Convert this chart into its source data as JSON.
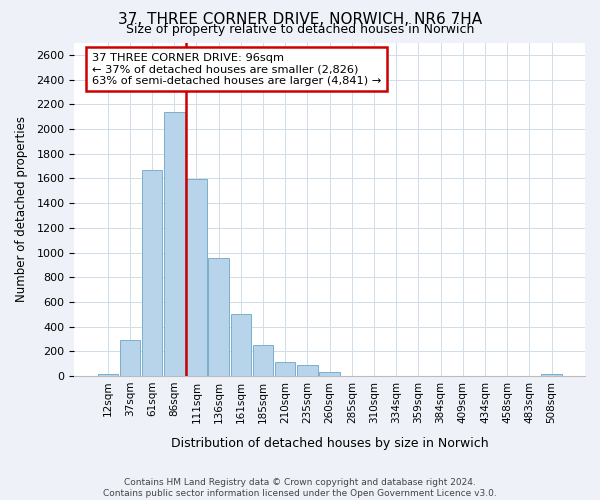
{
  "title": "37, THREE CORNER DRIVE, NORWICH, NR6 7HA",
  "subtitle": "Size of property relative to detached houses in Norwich",
  "xlabel": "Distribution of detached houses by size in Norwich",
  "ylabel": "Number of detached properties",
  "bin_labels": [
    "12sqm",
    "37sqm",
    "61sqm",
    "86sqm",
    "111sqm",
    "136sqm",
    "161sqm",
    "185sqm",
    "210sqm",
    "235sqm",
    "260sqm",
    "285sqm",
    "310sqm",
    "334sqm",
    "359sqm",
    "384sqm",
    "409sqm",
    "434sqm",
    "458sqm",
    "483sqm",
    "508sqm"
  ],
  "bar_heights": [
    20,
    290,
    1665,
    2140,
    1595,
    960,
    500,
    250,
    115,
    90,
    30,
    5,
    5,
    3,
    3,
    3,
    3,
    3,
    3,
    3,
    15
  ],
  "bar_color": "#b8d4ea",
  "bar_edge_color": "#7aaece",
  "vline_color": "#cc0000",
  "vline_xindex": 4,
  "annotation_text": "37 THREE CORNER DRIVE: 96sqm\n← 37% of detached houses are smaller (2,826)\n63% of semi-detached houses are larger (4,841) →",
  "annotation_box_color": "#ffffff",
  "annotation_box_edge": "#cc0000",
  "ylim": [
    0,
    2700
  ],
  "yticks": [
    0,
    200,
    400,
    600,
    800,
    1000,
    1200,
    1400,
    1600,
    1800,
    2000,
    2200,
    2400,
    2600
  ],
  "footer_line1": "Contains HM Land Registry data © Crown copyright and database right 2024.",
  "footer_line2": "Contains public sector information licensed under the Open Government Licence v3.0.",
  "background_color": "#eef2f8",
  "plot_bg_color": "#ffffff",
  "grid_color": "#d0dce8"
}
